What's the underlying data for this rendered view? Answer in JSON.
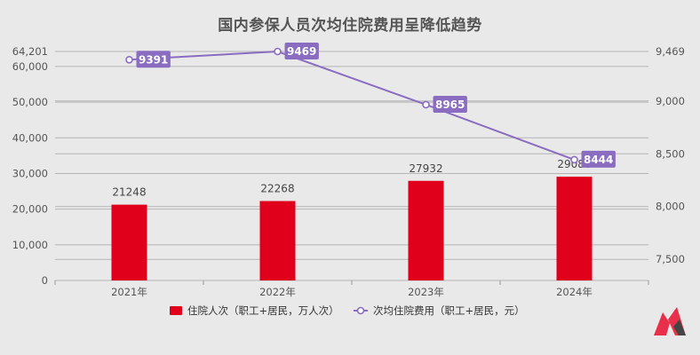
{
  "chart_data": {
    "type": "bar",
    "title": "国内参保人员次均住院费用呈降低趋势",
    "categories": [
      "2021年",
      "2022年",
      "2023年",
      "2024年"
    ],
    "series": [
      {
        "name": "住院人次（职工+居民，万人次）",
        "type": "bar",
        "axis": "left",
        "values": [
          21248,
          22268,
          27932,
          29086
        ],
        "labels": [
          "21248",
          "22268",
          "27932",
          "29086"
        ],
        "color": "#e0001b"
      },
      {
        "name": "次均住院费用（职工+居民，元）",
        "type": "line",
        "axis": "right",
        "values": [
          9391,
          9469,
          8965,
          8444
        ],
        "labels": [
          "9391",
          "9469",
          "8965",
          "8444"
        ],
        "color": "#8a6cc0"
      }
    ],
    "left_axis": {
      "min": 0,
      "max": 64201,
      "ticks": [
        "0",
        "10,000",
        "20,000",
        "30,000",
        "40,000",
        "50,000",
        "60,000",
        "64,201"
      ]
    },
    "right_axis": {
      "min": 7300,
      "max": 9469,
      "ticks": [
        "7,500",
        "8,000",
        "8,500",
        "9,000",
        "9,469"
      ]
    },
    "grid": true,
    "legend": "bottom"
  },
  "brand": {
    "logo_colors": [
      "#e8304a",
      "#444444"
    ]
  }
}
